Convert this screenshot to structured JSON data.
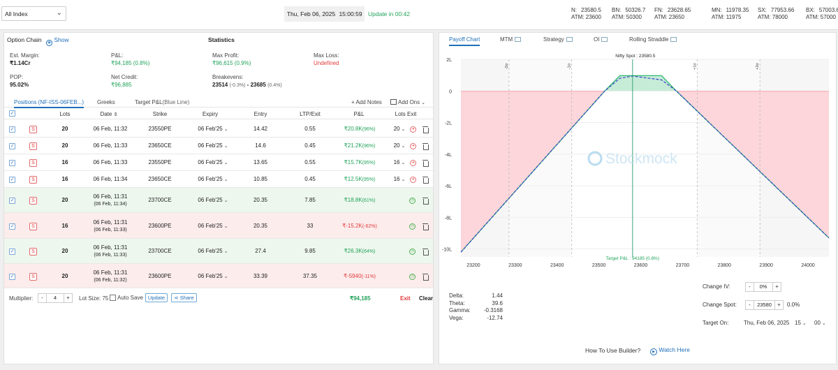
{
  "header": {
    "index_select": "All Index",
    "date": "Thu, Feb 06, 2025",
    "time": "15:00:59",
    "update_in": "Update in 00:42",
    "tickers": [
      {
        "name": "N:",
        "value": "23580.5",
        "atm_label": "ATM:",
        "atm": "23600"
      },
      {
        "name": "BN:",
        "value": "50326.7",
        "atm_label": "ATM:",
        "atm": "50300"
      },
      {
        "name": "FN:",
        "value": "23628.65",
        "atm_label": "ATM:",
        "atm": "23650"
      },
      {
        "name": "MN:",
        "value": "11978.35",
        "atm_label": "ATM:",
        "atm": "11975"
      },
      {
        "name": "SX:",
        "value": "77953.66",
        "atm_label": "ATM:",
        "atm": "78000"
      },
      {
        "name": "BX:",
        "value": "57003.6",
        "atm_label": "ATM:",
        "atm": "57000"
      }
    ]
  },
  "left": {
    "option_chain": "Option Chain",
    "show": "Show",
    "statistics": "Statistics",
    "stats": {
      "est_margin_label": "Est. Margin:",
      "est_margin": "₹1.14Cr",
      "pnl_label": "P&L:",
      "pnl": "₹94,185",
      "pnl_pct": "(0.8%)",
      "max_profit_label": "Max Profit:",
      "max_profit": "₹96,615",
      "max_profit_pct": "(0.9%)",
      "max_loss_label": "Max Loss:",
      "max_loss": "Undefined",
      "pop_label": "POP:",
      "pop": "95.02%",
      "net_credit_label": "Net Credit:",
      "net_credit": "₹96,885",
      "breakevens_label": "Breakevens:",
      "be1": "23514",
      "be1_pct": "(-0.3%)",
      "be_sep": "-",
      "be2": "23685",
      "be2_pct": "(0.4%)"
    },
    "tabs": {
      "positions": "Positions (NF-ISS-06FEB...)",
      "greeks": "Greeks",
      "target": "Target P&L",
      "target_sub": "(Blue Line)",
      "add_notes": "+ Add Notes",
      "add_ons": "Add Ons"
    },
    "columns": {
      "lots": "Lots",
      "date": "Date",
      "strike": "Strike",
      "expiry": "Expiry",
      "entry": "Entry",
      "ltp": "LTP/Exit",
      "pnl": "P&L",
      "lots_exit": "Lots Exit"
    },
    "rows": [
      {
        "s": "S",
        "lots": "20",
        "date": "06 Feb, 11:32",
        "date2": "",
        "strike": "23550",
        "type": "PE",
        "expiry": "06 Feb'25",
        "entry": "14.42",
        "ltp": "0.55",
        "pnl": "₹20.8K",
        "pnl_pct": "(96%)",
        "exit_lots": "20",
        "closed": false
      },
      {
        "s": "S",
        "lots": "20",
        "date": "06 Feb, 11:33",
        "date2": "",
        "strike": "23650",
        "type": "CE",
        "expiry": "06 Feb'25",
        "entry": "14.6",
        "ltp": "0.45",
        "pnl": "₹21.2K",
        "pnl_pct": "(96%)",
        "exit_lots": "20",
        "closed": false
      },
      {
        "s": "S",
        "lots": "16",
        "date": "06 Feb, 11:33",
        "date2": "",
        "strike": "23550",
        "type": "PE",
        "expiry": "06 Feb'25",
        "entry": "13.65",
        "ltp": "0.55",
        "pnl": "₹15.7K",
        "pnl_pct": "(95%)",
        "exit_lots": "16",
        "closed": false
      },
      {
        "s": "S",
        "lots": "16",
        "date": "06 Feb, 11:34",
        "date2": "",
        "strike": "23650",
        "type": "CE",
        "expiry": "06 Feb'25",
        "entry": "10.85",
        "ltp": "0.45",
        "pnl": "₹12.5K",
        "pnl_pct": "(95%)",
        "exit_lots": "16",
        "closed": false
      },
      {
        "s": "S",
        "lots": "20",
        "date": "06 Feb, 11:31",
        "date2": "(06 Feb, 11:34)",
        "strike": "23700",
        "type": "CE",
        "expiry": "06 Feb'25",
        "entry": "20.35",
        "ltp": "7.85",
        "pnl": "₹18.8K",
        "pnl_pct": "(61%)",
        "exit_lots": "",
        "closed": true,
        "profit": true
      },
      {
        "s": "S",
        "lots": "16",
        "date": "06 Feb, 11:31",
        "date2": "(06 Feb, 11:33)",
        "strike": "23600",
        "type": "PE",
        "expiry": "06 Feb'25",
        "entry": "20.35",
        "ltp": "33",
        "pnl": "₹-15.2K",
        "pnl_pct": "(-62%)",
        "exit_lots": "",
        "closed": true,
        "profit": false
      },
      {
        "s": "S",
        "lots": "20",
        "date": "06 Feb, 11:31",
        "date2": "(06 Feb, 11:33)",
        "strike": "23700",
        "type": "CE",
        "expiry": "06 Feb'25",
        "entry": "27.4",
        "ltp": "9.85",
        "pnl": "₹26.3K",
        "pnl_pct": "(64%)",
        "exit_lots": "",
        "closed": true,
        "profit": true
      },
      {
        "s": "S",
        "lots": "20",
        "date": "06 Feb, 11:31",
        "date2": "(06 Feb, 11:32)",
        "strike": "23600",
        "type": "PE",
        "expiry": "06 Feb'25",
        "entry": "33.39",
        "ltp": "37.35",
        "pnl": "₹-5940",
        "pnl_pct": "(-11%)",
        "exit_lots": "",
        "closed": true,
        "profit": false
      }
    ],
    "footer": {
      "multiplier_label": "Multiplier:",
      "multiplier": "4",
      "lot_size": "Lot Size: 75",
      "auto_save": "Auto Save",
      "update": "Update",
      "share": "Share",
      "total_pnl": "₹94,185",
      "exit": "Exit",
      "clear": "Clear"
    }
  },
  "right": {
    "tabs": [
      "Payoff Chart",
      "MTM",
      "Strategy",
      "OI",
      "Rolling Straddle"
    ],
    "spot_label": "Nifty Spot : 23580.5",
    "target_label": "Target P&L : 94185 (0.8%)",
    "watermark": "Stockmock",
    "sd_labels": [
      "-2σ",
      "-1σ",
      "+1σ",
      "+2σ"
    ],
    "greeks": [
      {
        "label": "Delta:",
        "value": "1.44"
      },
      {
        "label": "Theta:",
        "value": "39.6"
      },
      {
        "label": "Gamma:",
        "value": "-0.3168"
      },
      {
        "label": "Vega:",
        "value": "-12.74"
      }
    ],
    "change_iv_label": "Change IV:",
    "change_iv": "0%",
    "change_spot_label": "Change Spot:",
    "change_spot": "23580",
    "change_spot_pct": "0.0%",
    "target_on_label": "Target On:",
    "target_on_date": "Thu, Feb 06, 2025",
    "target_hour": "15",
    "target_min": "00",
    "how_to": "How To Use Builder?",
    "watch": "Watch Here",
    "colors": {
      "profit": "#2eb872",
      "loss": "#f7c6cb",
      "target_line": "#3a43c7",
      "spot_line": "#3aa57a"
    }
  },
  "chart_data": {
    "type": "area",
    "x_ticks": [
      "23200",
      "23300",
      "23400",
      "23500",
      "23600",
      "23700",
      "23800",
      "23900",
      "24000"
    ],
    "y_ticks": [
      "2L",
      "0",
      "-2L",
      "-4L",
      "-6L",
      "-8L",
      "-10L"
    ],
    "xlim": [
      23170,
      24050
    ],
    "ylim": [
      -1050000,
      200000
    ],
    "spot": 23580.5,
    "sd_lines": [
      23285,
      23435,
      23735,
      23885
    ],
    "expiry_series": {
      "x": [
        23170,
        23514,
        23550,
        23650,
        23685,
        24050
      ],
      "y": [
        -1020000,
        0,
        96615,
        96615,
        0,
        -930000
      ]
    },
    "target_series": {
      "x": [
        23170,
        23514,
        23550,
        23580.5,
        23650,
        23685,
        24050
      ],
      "y": [
        -1020000,
        0,
        80000,
        94185,
        70000,
        0,
        -930000
      ]
    }
  }
}
